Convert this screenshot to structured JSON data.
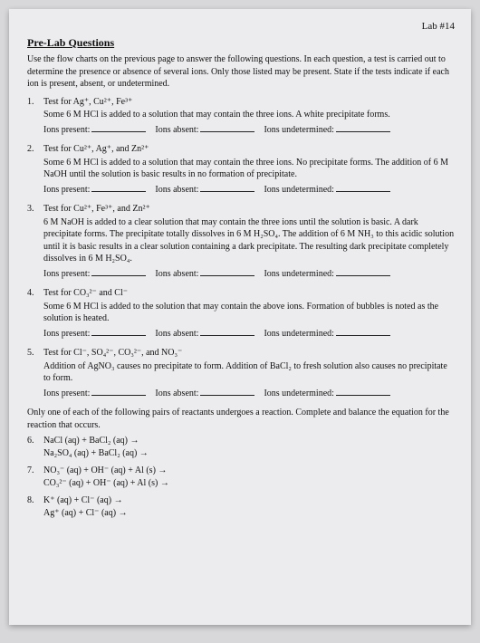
{
  "header": {
    "lab": "Lab #14",
    "title": "Pre-Lab Questions"
  },
  "intro": "Use the flow charts on the previous page to answer the following questions. In each question, a test is carried out to determine the presence or absence of several ions. Only those listed may be present. State if the tests indicate if each ion is present, absent, or undetermined.",
  "questions": [
    {
      "num": "1.",
      "title": "Test for Ag⁺, Cu²⁺, Fe³⁺",
      "desc": "Some 6 M HCl is added to a solution that may contain the three ions. A white precipitate forms."
    },
    {
      "num": "2.",
      "title": "Test for Cu²⁺, Ag⁺, and Zn²⁺",
      "desc": "Some 6 M HCl is added to a solution that may contain the three ions. No precipitate forms. The addition of 6 M NaOH until the solution is basic results in no formation of precipitate."
    },
    {
      "num": "3.",
      "title": "Test for Cu²⁺, Fe³⁺, and Zn²⁺",
      "desc": "6 M NaOH is added to a clear solution that may contain the three ions until the solution is basic. A dark precipitate forms. The precipitate totally dissolves in 6 M H₂SO₄. The addition of 6 M NH₃ to this acidic solution until it is basic results in a clear solution containing a dark precipitate. The resulting dark precipitate completely dissolves in 6 M H₂SO₄."
    },
    {
      "num": "4.",
      "title": "Test for CO₃²⁻ and Cl⁻",
      "desc": "Some 6 M HCl is added to the solution that may contain the above ions. Formation of bubbles is noted as the solution is heated."
    },
    {
      "num": "5.",
      "title": "Test for Cl⁻, SO₄²⁻, CO₃²⁻, and NO₃⁻",
      "desc": "Addition of AgNO₃ causes no precipitate to form. Addition of BaCl₂ to fresh solution also causes no precipitate to form."
    }
  ],
  "blanks": {
    "present": "Ions present:",
    "absent": "Ions absent:",
    "undet": "Ions undetermined:"
  },
  "after": "Only one of each of the following pairs of reactants undergoes a reaction. Complete and balance the equation for the reaction that occurs.",
  "eqns": [
    {
      "num": "6.",
      "a": "NaCl (aq)  +  BaCl₂ (aq)  →",
      "b": "Na₂SO₄ (aq)  +  BaCl₂ (aq)  →"
    },
    {
      "num": "7.",
      "a": "NO₃⁻ (aq)  +  OH⁻ (aq)  +  Al (s)  →",
      "b": "CO₃²⁻ (aq)  +  OH⁻ (aq)  +  Al (s)  →"
    },
    {
      "num": "8.",
      "a": "K⁺ (aq)  +  Cl⁻ (aq)  →",
      "b": "Ag⁺ (aq)  +  Cl⁻ (aq)  →"
    }
  ]
}
